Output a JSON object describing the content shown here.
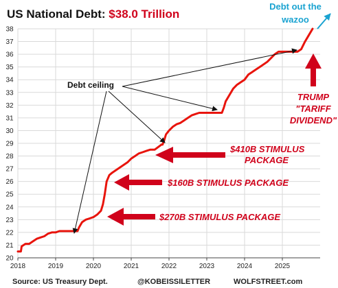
{
  "title": {
    "prefix": "US National Debt: ",
    "value": "$38.0 Trillion",
    "value_color": "#d0021b"
  },
  "footer": {
    "source": "Source: US Treasury Dept.",
    "handle": "@KOBEISSILETTER",
    "site": "WOLFSTREET.com"
  },
  "annotations": {
    "debt_ceiling": "Debt ceiling",
    "stimulus_410": [
      "$410B STIMULUS",
      "PACKAGE"
    ],
    "stimulus_160": "$160B STIMULUS PACKAGE",
    "stimulus_270": "$270B STIMULUS PACKAGE",
    "trump": [
      "TRUMP",
      "\"TARIFF",
      "DIVIDEND\""
    ],
    "wazoo": [
      "Debt out the",
      "wazoo"
    ]
  },
  "colors": {
    "line": "#e8140c",
    "arrow_red": "#d0021b",
    "arrow_black": "#111111",
    "arrow_cyan": "#1aa3d1",
    "grid": "#d9d9d9"
  },
  "chart_data": {
    "type": "line",
    "title": "US National Debt: $38.0 Trillion",
    "xlabel": "",
    "ylabel": "",
    "xlim": [
      2018.0,
      2026.0
    ],
    "ylim": [
      20,
      38
    ],
    "xticks": [
      "2018",
      "2019",
      "2020",
      "2021",
      "2022",
      "2023",
      "2024",
      "2025"
    ],
    "yticks": [
      20,
      21,
      22,
      23,
      24,
      25,
      26,
      27,
      28,
      29,
      30,
      31,
      32,
      33,
      34,
      35,
      36,
      37,
      38
    ],
    "grid": true,
    "series": [
      {
        "x": [
          2018.0,
          2018.08,
          2018.1,
          2018.2,
          2018.3,
          2018.4,
          2018.5,
          2018.6,
          2018.7,
          2018.8,
          2018.9,
          2019.0,
          2019.1,
          2019.2,
          2019.3,
          2019.4,
          2019.5,
          2019.58,
          2019.62,
          2019.7,
          2019.8,
          2019.9,
          2020.0,
          2020.1,
          2020.2,
          2020.25,
          2020.3,
          2020.35,
          2020.42,
          2020.5,
          2020.6,
          2020.7,
          2020.8,
          2020.9,
          2021.0,
          2021.1,
          2021.2,
          2021.3,
          2021.4,
          2021.5,
          2021.6,
          2021.62,
          2021.8,
          2021.83,
          2021.87,
          2021.92,
          2022.0,
          2022.1,
          2022.2,
          2022.3,
          2022.4,
          2022.5,
          2022.6,
          2022.7,
          2022.8,
          2022.9,
          2023.0,
          2023.2,
          2023.4,
          2023.45,
          2023.5,
          2023.6,
          2023.7,
          2023.8,
          2023.9,
          2024.0,
          2024.1,
          2024.2,
          2024.3,
          2024.4,
          2024.5,
          2024.6,
          2024.7,
          2024.8,
          2024.9,
          2025.0,
          2025.05,
          2025.2,
          2025.4,
          2025.5,
          2025.6,
          2025.7,
          2025.8
        ],
        "values": [
          20.5,
          20.5,
          20.9,
          21.1,
          21.1,
          21.3,
          21.5,
          21.6,
          21.7,
          21.9,
          22.0,
          22.0,
          22.1,
          22.1,
          22.1,
          22.1,
          22.1,
          22.1,
          22.4,
          22.8,
          23.0,
          23.1,
          23.2,
          23.4,
          23.7,
          24.2,
          25.0,
          26.0,
          26.5,
          26.7,
          26.9,
          27.1,
          27.3,
          27.5,
          27.8,
          28.0,
          28.2,
          28.3,
          28.4,
          28.5,
          28.5,
          28.5,
          28.9,
          28.9,
          29.2,
          29.7,
          30.0,
          30.3,
          30.5,
          30.6,
          30.8,
          31.0,
          31.2,
          31.3,
          31.4,
          31.4,
          31.4,
          31.4,
          31.4,
          31.8,
          32.3,
          32.8,
          33.3,
          33.6,
          33.8,
          34.0,
          34.4,
          34.6,
          34.8,
          35.0,
          35.2,
          35.4,
          35.7,
          36.0,
          36.2,
          36.2,
          36.2,
          36.2,
          36.2,
          36.4,
          37.0,
          37.5,
          38.0
        ]
      }
    ]
  }
}
